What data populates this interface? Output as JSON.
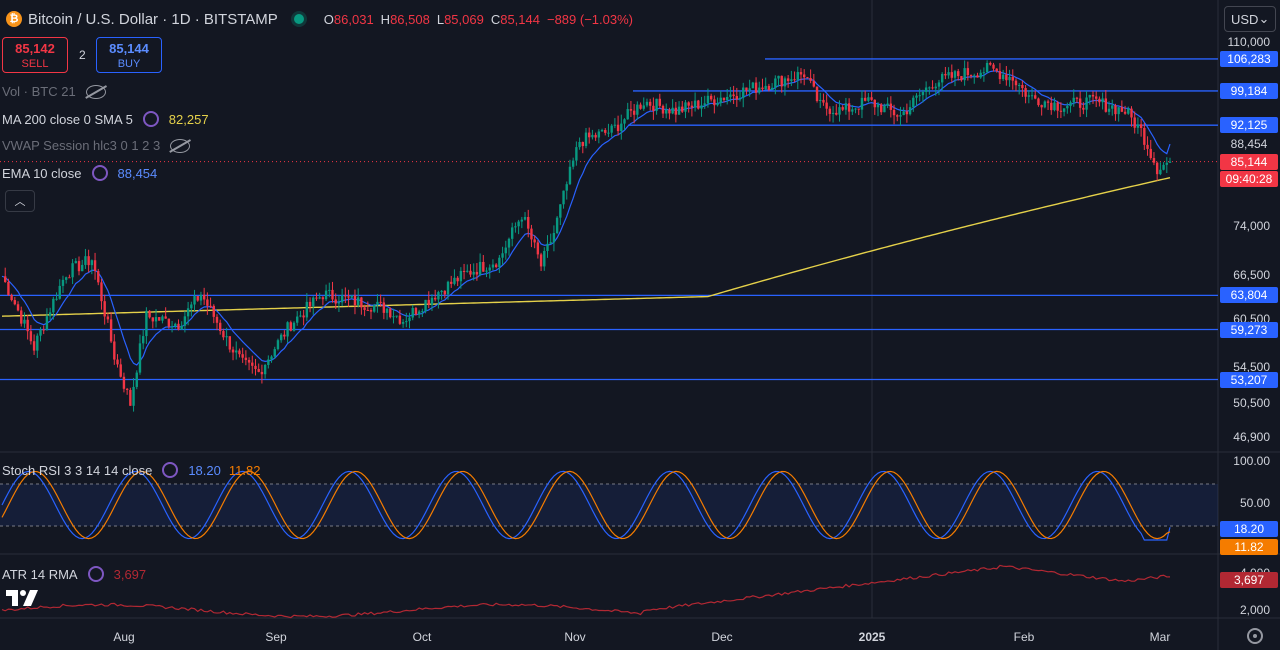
{
  "header": {
    "symbol_title": "Bitcoin / U.S. Dollar · 1D · BITSTAMP",
    "coin_glyph": "₿",
    "ohlc": [
      {
        "key": "O",
        "value": "86,031"
      },
      {
        "key": "H",
        "value": "86,508"
      },
      {
        "key": "L",
        "value": "85,069"
      },
      {
        "key": "C",
        "value": "85,144"
      },
      {
        "key": "",
        "value": "−889 (−1.03%)"
      }
    ]
  },
  "trade": {
    "sell_price": "85,142",
    "sell_label": "SELL",
    "spread": "2",
    "buy_price": "85,144",
    "buy_label": "BUY"
  },
  "currency": {
    "label": "USD",
    "chevron": "⌄"
  },
  "indicators": {
    "vol": "Vol · BTC 21",
    "ma": "MA 200 close 0 SMA 5",
    "ma_value": "82,257",
    "vwap": "VWAP Session hlc3 0 1 2 3",
    "ema": "EMA 10 close",
    "ema_value": "88,454",
    "stoch": "Stoch RSI 3 3 14 14 close",
    "stoch_k": "18.20",
    "stoch_d": "11.82",
    "atr": "ATR 14 RMA",
    "atr_value": "3,697"
  },
  "price_axis": {
    "ticks": [
      "110,000",
      "74,000",
      "66,500",
      "60,500",
      "54,500",
      "50,500",
      "46,900"
    ],
    "tags": [
      {
        "label": "106,283",
        "color": "#2962ff"
      },
      {
        "label": "99,184",
        "color": "#2962ff"
      },
      {
        "label": "92,125",
        "color": "#2962ff"
      },
      {
        "label": "88,454",
        "color": "#131722"
      },
      {
        "label": "85,144",
        "color": "#f23645"
      },
      {
        "label": "09:40:28",
        "color": "#f23645"
      },
      {
        "label": "63,804",
        "color": "#2962ff"
      },
      {
        "label": "59,273",
        "color": "#2962ff"
      },
      {
        "label": "53,207",
        "color": "#2962ff"
      }
    ]
  },
  "stoch_axis": {
    "ticks": [
      "100.00",
      "50.00"
    ],
    "tags": [
      {
        "label": "18.20",
        "color": "#2962ff"
      },
      {
        "label": "11.82",
        "color": "#f57c00"
      }
    ]
  },
  "atr_axis": {
    "ticks": [
      "4,000",
      "2,000"
    ],
    "tags": [
      {
        "label": "3,697",
        "color": "#b22833"
      }
    ]
  },
  "time_axis": [
    "Aug",
    "Sep",
    "Oct",
    "Nov",
    "Dec",
    "2025",
    "Feb",
    "Mar"
  ],
  "colors": {
    "up": "#089981",
    "down": "#f23645",
    "ema": "#2962ff",
    "ma": "#e5d14a",
    "level": "#2962ff",
    "k": "#2962ff",
    "d": "#f57c00",
    "atr": "#b22833"
  },
  "chart_data": {
    "type": "candlestick",
    "levels": [
      106283,
      99184,
      92125,
      63804,
      59273,
      53207
    ],
    "last_price": 85144,
    "ema_last": 88454,
    "ma_last": 82257,
    "close_path": [
      [
        0,
        66500
      ],
      [
        10,
        57000
      ],
      [
        20,
        67000
      ],
      [
        28,
        69000
      ],
      [
        35,
        56000
      ],
      [
        40,
        50500
      ],
      [
        45,
        61000
      ],
      [
        55,
        60000
      ],
      [
        62,
        64000
      ],
      [
        70,
        58000
      ],
      [
        75,
        55000
      ],
      [
        80,
        54000
      ],
      [
        90,
        60000
      ],
      [
        100,
        64000
      ],
      [
        110,
        63000
      ],
      [
        120,
        62000
      ],
      [
        125,
        60500
      ],
      [
        135,
        64000
      ],
      [
        145,
        67000
      ],
      [
        155,
        69000
      ],
      [
        162,
        76000
      ],
      [
        168,
        68000
      ],
      [
        172,
        73000
      ],
      [
        180,
        89000
      ],
      [
        190,
        91000
      ],
      [
        200,
        97000
      ],
      [
        210,
        95000
      ],
      [
        220,
        97000
      ],
      [
        230,
        99000
      ],
      [
        240,
        101000
      ],
      [
        250,
        103000
      ],
      [
        255,
        96000
      ],
      [
        262,
        95000
      ],
      [
        270,
        97000
      ],
      [
        280,
        94000
      ],
      [
        290,
        101000
      ],
      [
        300,
        103000
      ],
      [
        308,
        104000
      ],
      [
        315,
        102000
      ],
      [
        320,
        98000
      ],
      [
        330,
        96000
      ],
      [
        340,
        97000
      ],
      [
        350,
        95000
      ],
      [
        355,
        91000
      ],
      [
        360,
        84000
      ],
      [
        364,
        85144
      ]
    ],
    "stoch_k_last": 18.2,
    "stoch_d_last": 11.82,
    "atr_last": 3697
  }
}
